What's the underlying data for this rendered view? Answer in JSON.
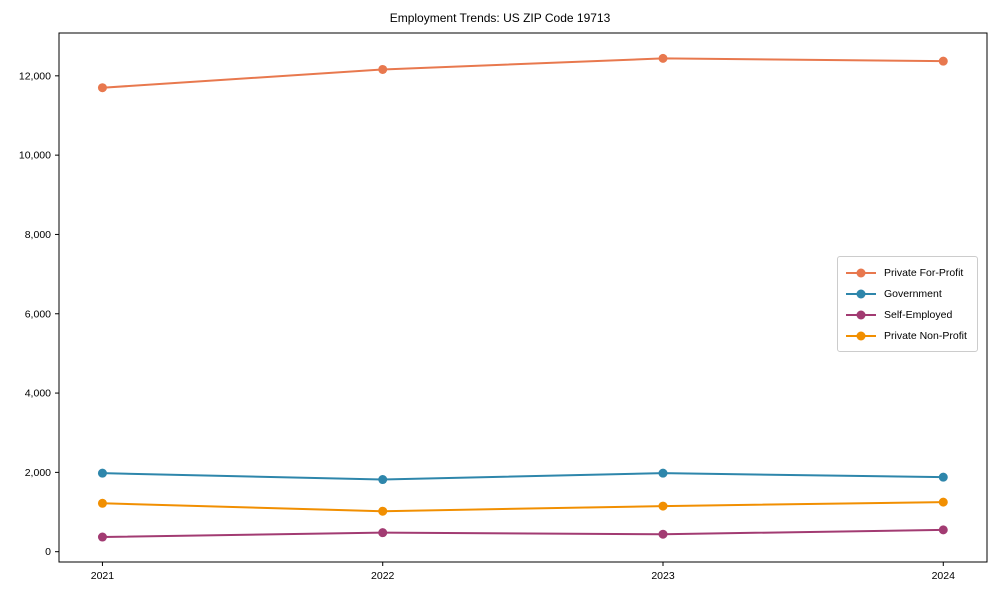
{
  "chart_data": {
    "type": "line",
    "title": "Employment Trends: US ZIP Code 19713",
    "xlabel": "",
    "ylabel": "",
    "x": [
      2021,
      2022,
      2023,
      2024
    ],
    "xtick_labels": [
      "2021",
      "2022",
      "2023",
      "2024"
    ],
    "series": [
      {
        "name": "Private For-Profit",
        "color": "#E8784E",
        "values": [
          11700,
          12160,
          12440,
          12370
        ]
      },
      {
        "name": "Government",
        "color": "#2E86AB",
        "values": [
          1980,
          1820,
          1980,
          1880
        ]
      },
      {
        "name": "Self-Employed",
        "color": "#A23B72",
        "values": [
          370,
          480,
          440,
          550
        ]
      },
      {
        "name": "Private Non-Profit",
        "color": "#F18F01",
        "values": [
          1220,
          1020,
          1150,
          1250
        ]
      }
    ],
    "yticks": [
      0,
      2000,
      4000,
      6000,
      8000,
      10000,
      12000
    ],
    "ytick_labels": [
      "0",
      "2,000",
      "4,000",
      "6,000",
      "8,000",
      "10,000",
      "12,000"
    ],
    "xlim": [
      2020.845,
      2024.156
    ],
    "ylim": [
      -260,
      13080
    ],
    "grid": false,
    "legend_position": "right-middle",
    "marker": "circle",
    "marker_radius": 4.5,
    "line_width": 2,
    "axis_color": "#000000",
    "plot_background": "#ffffff"
  }
}
